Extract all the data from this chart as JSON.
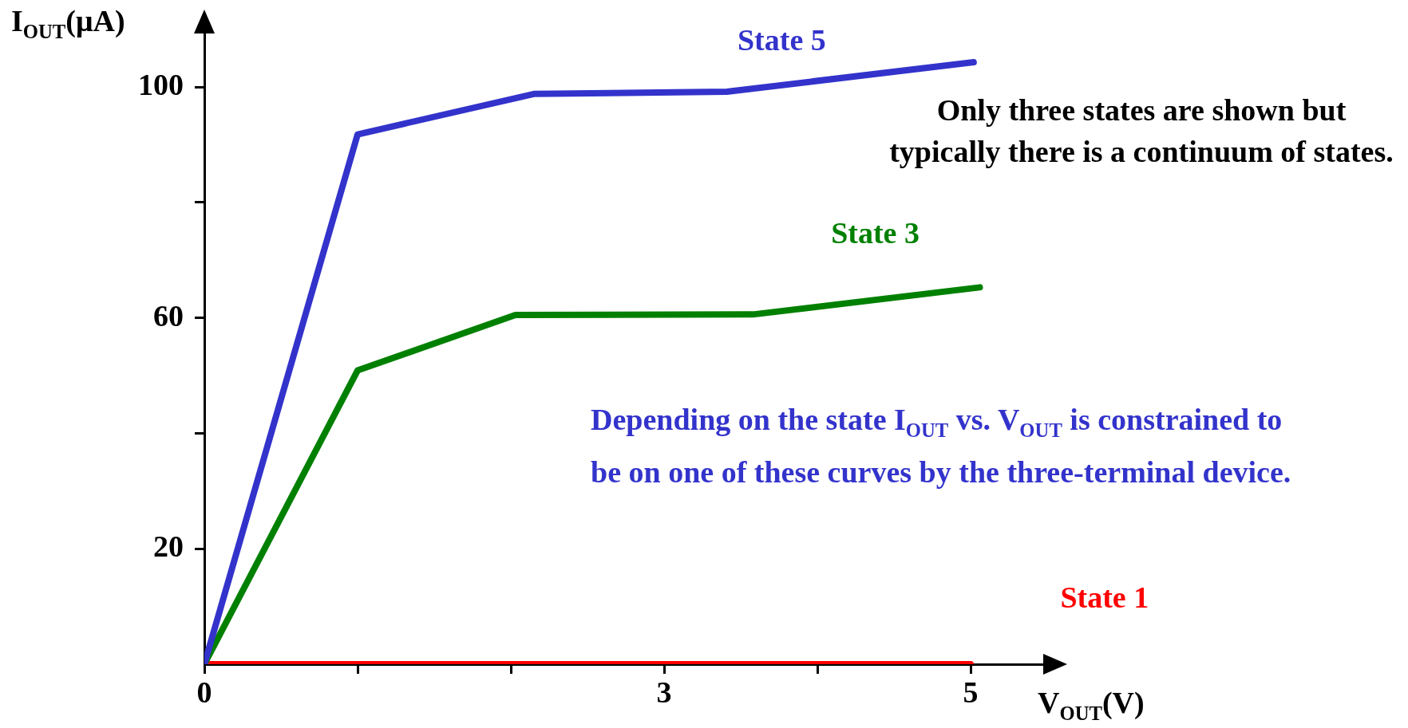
{
  "chart_data": {
    "type": "line",
    "xlabel": "V$_{OUT}$(V)",
    "ylabel": "I$_{OUT}$(μA)",
    "xlim": [
      0,
      5.5
    ],
    "ylim": [
      0,
      110
    ],
    "xticks": [
      0,
      {
        "value": 1,
        "label": null
      },
      {
        "value": 2,
        "label": null
      },
      3,
      {
        "value": 4,
        "label": null
      },
      5
    ],
    "yticks": [
      20,
      {
        "value": 40,
        "label": null
      },
      60,
      {
        "value": 80,
        "label": null
      },
      100
    ],
    "grid": false,
    "legend": false,
    "marker": "none",
    "line_style": "solid",
    "series": [
      {
        "name": "State 5",
        "color": "#3333cc",
        "x": [
          0,
          1,
          2.15,
          3.41,
          5.02
        ],
        "values": [
          0,
          91.8,
          98.8,
          99.2,
          104.3
        ]
      },
      {
        "name": "State 3",
        "color": "#008000",
        "x": [
          0,
          1,
          2.03,
          3.58,
          5.06
        ],
        "values": [
          0,
          50.9,
          60.5,
          60.6,
          65.3
        ]
      },
      {
        "name": "State 1",
        "color": "#ff0000",
        "x": [
          0,
          5
        ],
        "values": [
          0,
          0
        ]
      }
    ],
    "annotations": [
      "Only three states are shown but typically there is a continuum of states.",
      "Depending on the state I$_{OUT}$ vs. V$_{OUT}$ is constrained to be on one of these curves by the three-terminal device."
    ]
  }
}
